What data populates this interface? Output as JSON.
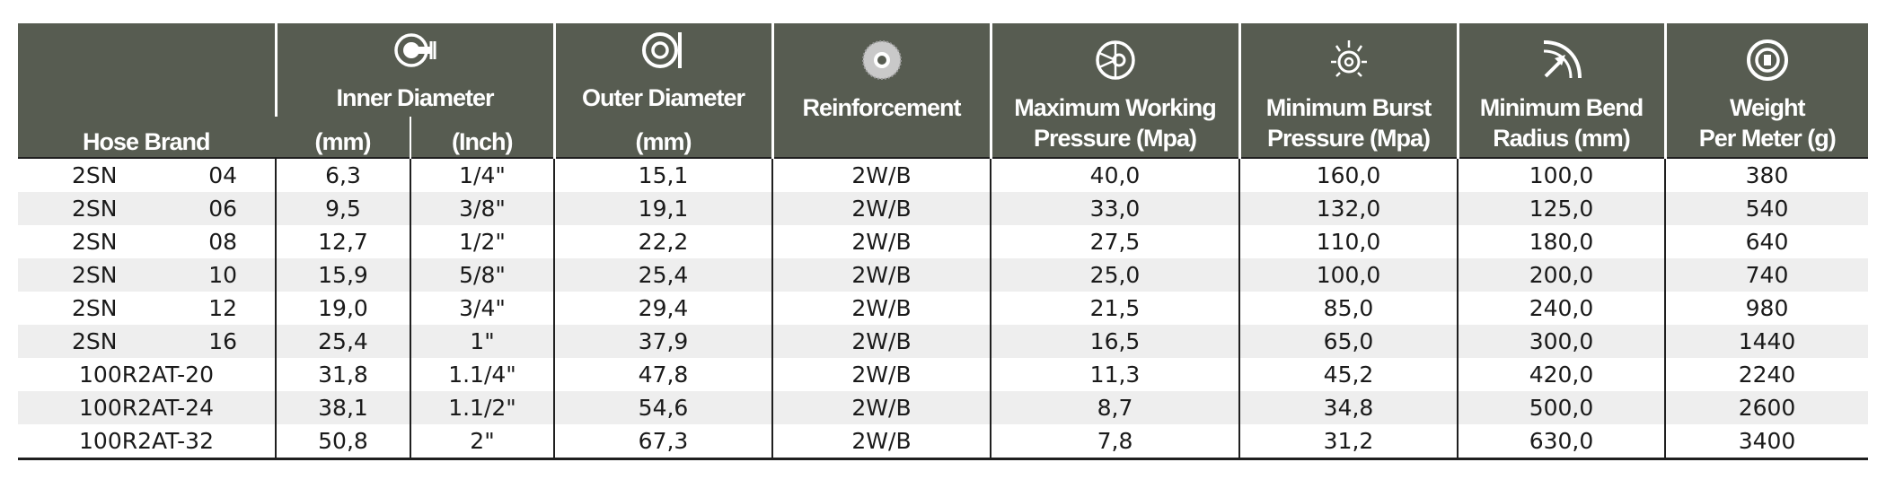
{
  "header": {
    "hose_brand": "Hose Brand",
    "inner_diameter": "Inner Diameter",
    "inner_mm": "(mm)",
    "inner_inch": "(Inch)",
    "outer_diameter": "Outer Diameter",
    "outer_mm": "(mm)",
    "reinforcement": "Reinforcement",
    "max_working_1": "Maximum Working",
    "max_working_2": "Pressure (Mpa)",
    "min_burst_1": "Minimum Burst",
    "min_burst_2": "Pressure (Mpa)",
    "min_bend_1": "Minimum Bend",
    "min_bend_2": "Radius (mm)",
    "weight_1": "Weight",
    "weight_2": "Per Meter (g)"
  },
  "icons": {
    "inner_diameter": "inner-diameter-icon",
    "outer_diameter": "outer-diameter-icon",
    "reinforcement": "reinforcement-icon",
    "max_working_pressure": "pressure-gauge-icon",
    "min_burst_pressure": "burst-icon",
    "min_bend_radius": "bend-radius-icon",
    "weight": "weight-icon"
  },
  "colors": {
    "header_bg": "#575c51",
    "stripe": "#eeeeee"
  },
  "rows": [
    {
      "brand": "2SN",
      "size": "04",
      "inner_mm": "6,3",
      "inner_inch": "1/4\"",
      "outer_mm": "15,1",
      "reinforcement": "2W/B",
      "max_working": "40,0",
      "min_burst": "160,0",
      "min_bend": "100,0",
      "weight": "380"
    },
    {
      "brand": "2SN",
      "size": "06",
      "inner_mm": "9,5",
      "inner_inch": "3/8\"",
      "outer_mm": "19,1",
      "reinforcement": "2W/B",
      "max_working": "33,0",
      "min_burst": "132,0",
      "min_bend": "125,0",
      "weight": "540"
    },
    {
      "brand": "2SN",
      "size": "08",
      "inner_mm": "12,7",
      "inner_inch": "1/2\"",
      "outer_mm": "22,2",
      "reinforcement": "2W/B",
      "max_working": "27,5",
      "min_burst": "110,0",
      "min_bend": "180,0",
      "weight": "640"
    },
    {
      "brand": "2SN",
      "size": "10",
      "inner_mm": "15,9",
      "inner_inch": "5/8\"",
      "outer_mm": "25,4",
      "reinforcement": "2W/B",
      "max_working": "25,0",
      "min_burst": "100,0",
      "min_bend": "200,0",
      "weight": "740"
    },
    {
      "brand": "2SN",
      "size": "12",
      "inner_mm": "19,0",
      "inner_inch": "3/4\"",
      "outer_mm": "29,4",
      "reinforcement": "2W/B",
      "max_working": "21,5",
      "min_burst": "85,0",
      "min_bend": "240,0",
      "weight": "980"
    },
    {
      "brand": "2SN",
      "size": "16",
      "inner_mm": "25,4",
      "inner_inch": "1\"",
      "outer_mm": "37,9",
      "reinforcement": "2W/B",
      "max_working": "16,5",
      "min_burst": "65,0",
      "min_bend": "300,0",
      "weight": "1440"
    },
    {
      "brand": "100R2AT-20",
      "size": "",
      "inner_mm": "31,8",
      "inner_inch": "1.1/4\"",
      "outer_mm": "47,8",
      "reinforcement": "2W/B",
      "max_working": "11,3",
      "min_burst": "45,2",
      "min_bend": "420,0",
      "weight": "2240"
    },
    {
      "brand": "100R2AT-24",
      "size": "",
      "inner_mm": "38,1",
      "inner_inch": "1.1/2\"",
      "outer_mm": "54,6",
      "reinforcement": "2W/B",
      "max_working": "8,7",
      "min_burst": "34,8",
      "min_bend": "500,0",
      "weight": "2600"
    },
    {
      "brand": "100R2AT-32",
      "size": "",
      "inner_mm": "50,8",
      "inner_inch": "2\"",
      "outer_mm": "67,3",
      "reinforcement": "2W/B",
      "max_working": "7,8",
      "min_burst": "31,2",
      "min_bend": "630,0",
      "weight": "3400"
    }
  ]
}
